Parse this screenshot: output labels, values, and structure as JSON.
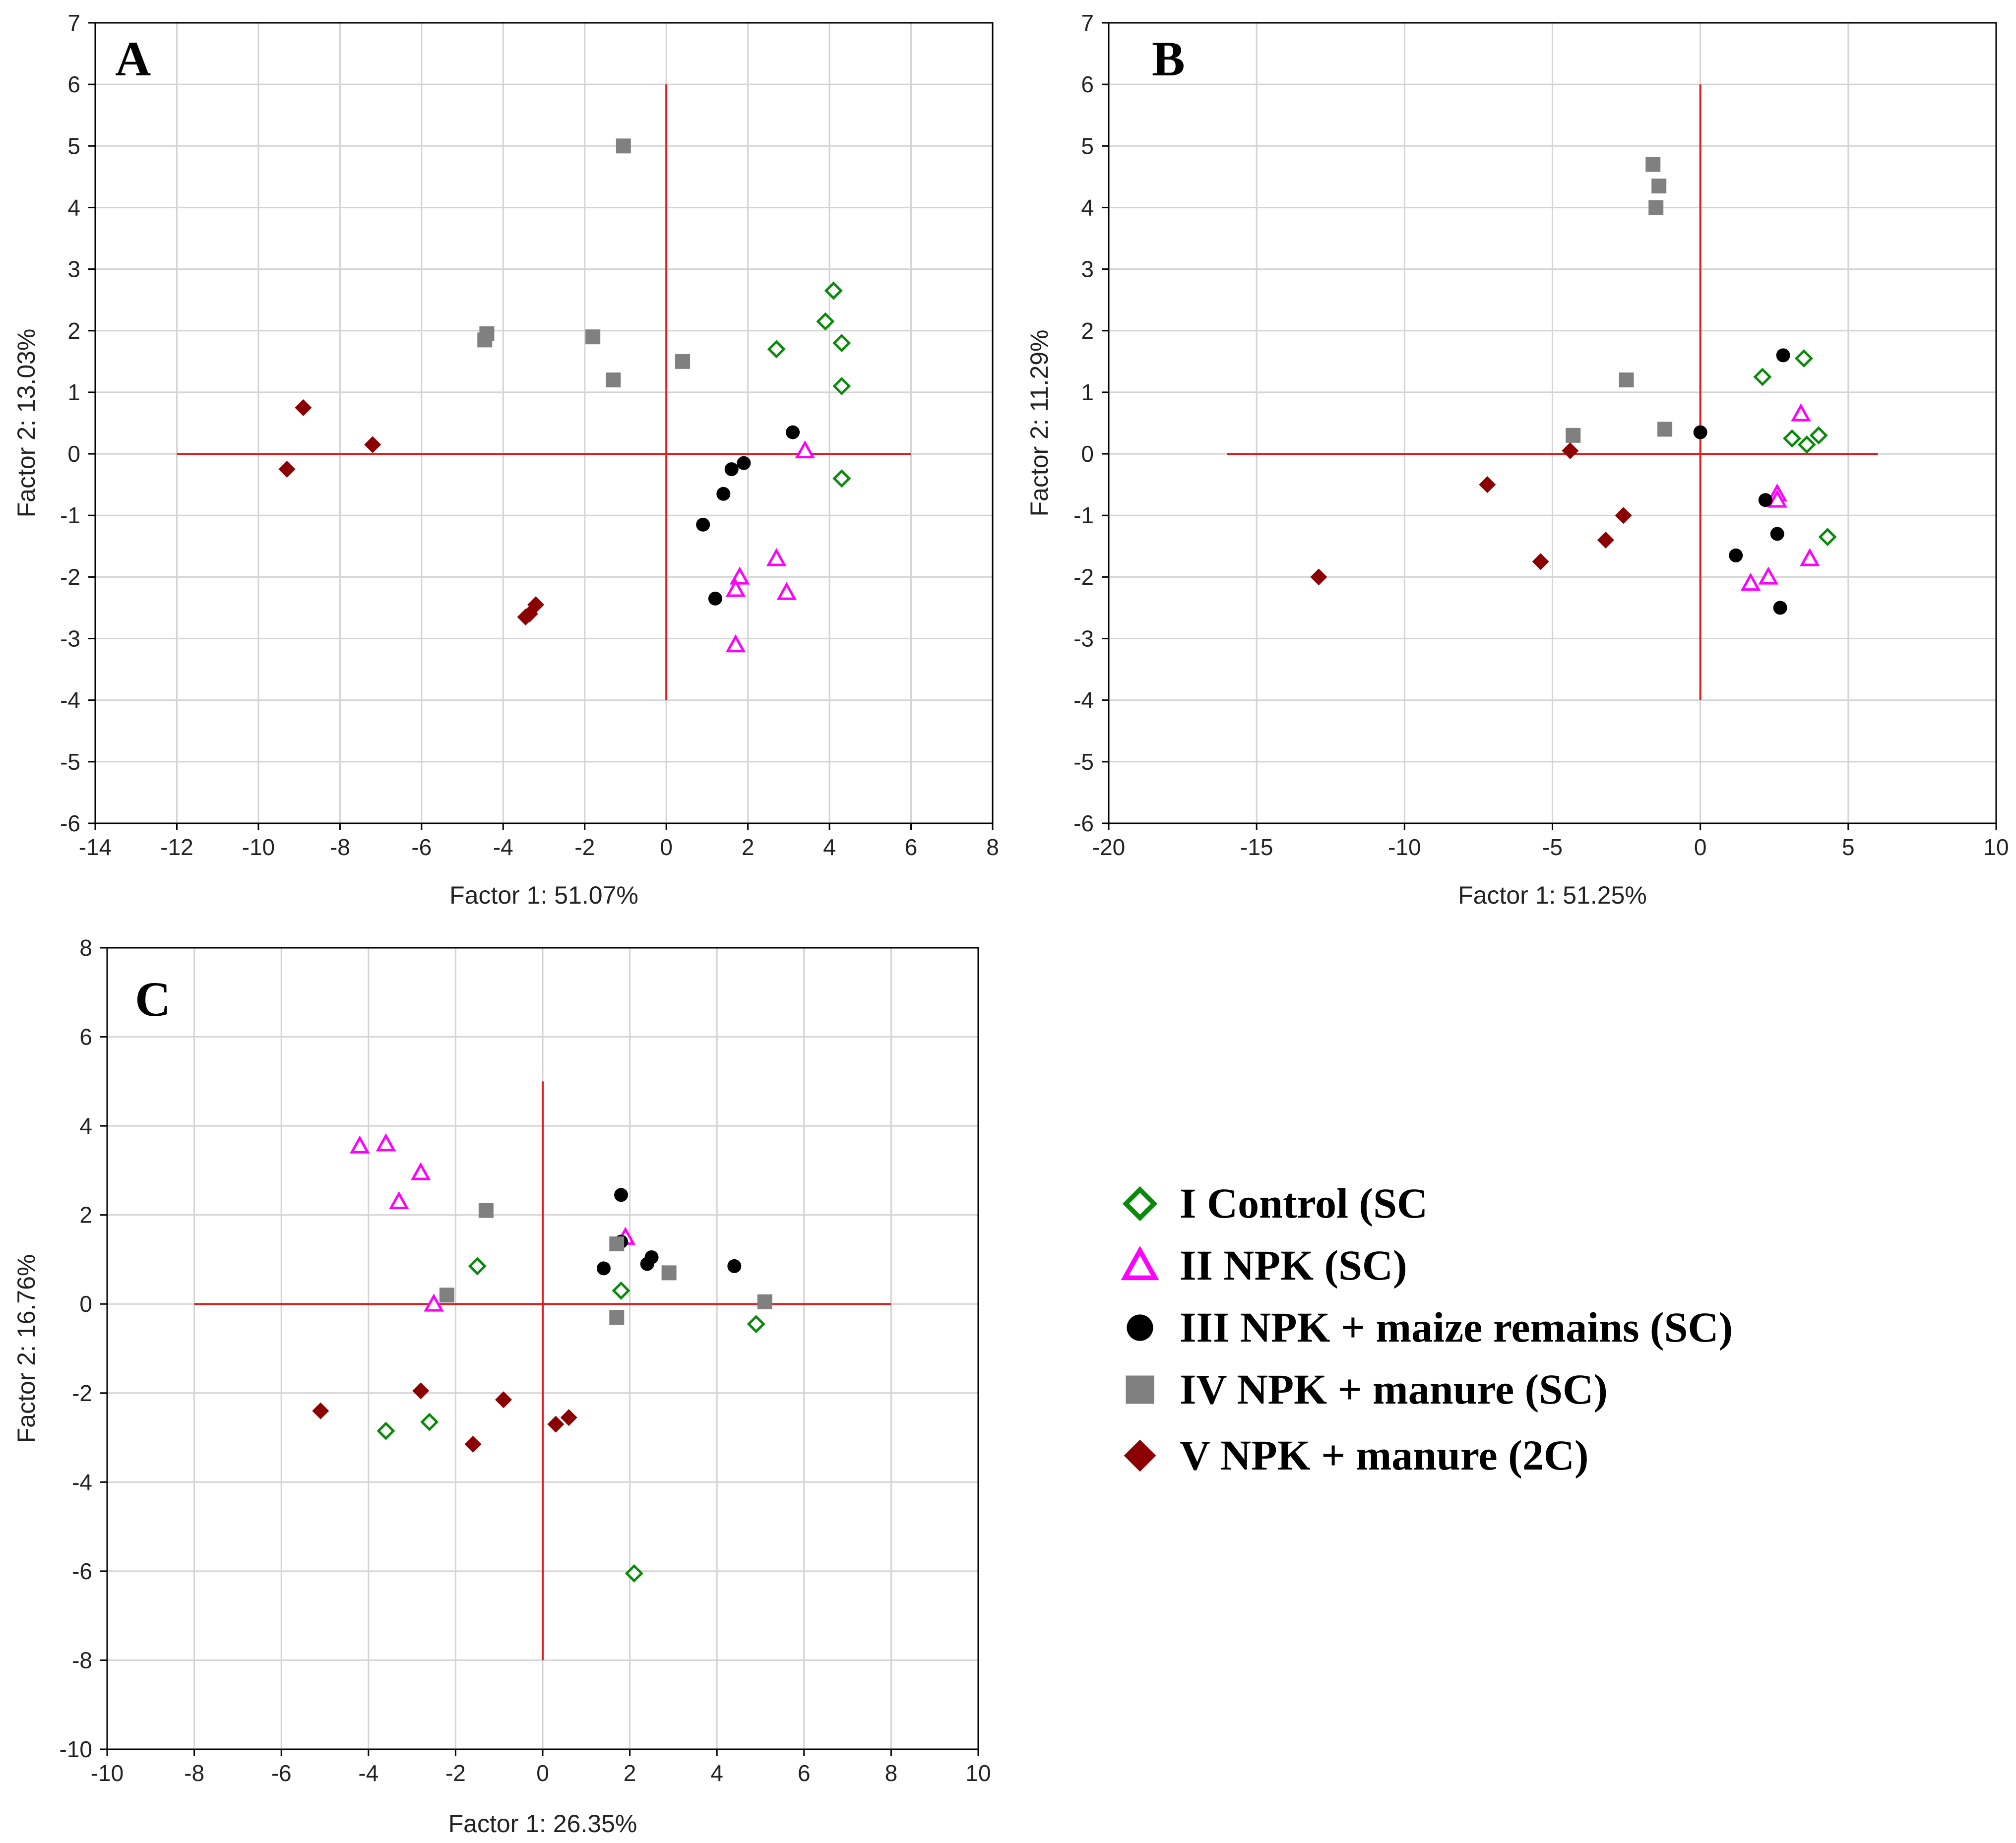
{
  "colors": {
    "control": "#0a8a0a",
    "npk": "#ff00ff",
    "maize": "#000000",
    "manure_sc": "#808080",
    "manure_2c": "#8b0000",
    "reference_line": "#e02020",
    "grid": "#d4d4d4"
  },
  "legend": {
    "items": [
      {
        "key": "control",
        "label": "I Control (SC",
        "marker": "diamond-open"
      },
      {
        "key": "npk",
        "label": "II NPK (SC)",
        "marker": "triangle-open"
      },
      {
        "key": "maize",
        "label": "III NPK + maize remains (SC)",
        "marker": "circle"
      },
      {
        "key": "manure_sc",
        "label": "IV NPK + manure (SC)",
        "marker": "square"
      },
      {
        "key": "manure_2c",
        "label": "V NPK + manure (2C)",
        "marker": "diamond"
      }
    ]
  },
  "chart_data": [
    {
      "panel": "A",
      "type": "scatter",
      "xlabel": "Factor 1: 51.07%",
      "ylabel": "Factor 2: 13.03%",
      "xlim": [
        -14,
        8
      ],
      "ylim": [
        -6,
        7
      ],
      "xticks": [
        -14,
        -12,
        -10,
        -8,
        -6,
        -4,
        -2,
        0,
        2,
        4,
        6,
        8
      ],
      "yticks": [
        -6,
        -5,
        -4,
        -3,
        -2,
        -1,
        0,
        1,
        2,
        3,
        4,
        5,
        6,
        7
      ],
      "reference_lines": {
        "horizontal": {
          "y": 0,
          "x_from": -12,
          "x_to": 6
        },
        "vertical": {
          "x": 0,
          "y_from": -4,
          "y_to": 6
        }
      },
      "series": [
        {
          "key": "control",
          "points": [
            [
              4.1,
              2.65
            ],
            [
              3.9,
              2.15
            ],
            [
              4.3,
              1.8
            ],
            [
              2.7,
              1.7
            ],
            [
              4.3,
              1.1
            ],
            [
              4.3,
              -0.4
            ]
          ]
        },
        {
          "key": "npk",
          "points": [
            [
              3.4,
              0.05
            ],
            [
              2.7,
              -1.7
            ],
            [
              1.8,
              -2.0
            ],
            [
              1.7,
              -2.2
            ],
            [
              2.95,
              -2.25
            ],
            [
              1.7,
              -3.1
            ]
          ]
        },
        {
          "key": "maize",
          "points": [
            [
              3.1,
              0.35
            ],
            [
              1.9,
              -0.15
            ],
            [
              1.6,
              -0.25
            ],
            [
              1.4,
              -0.65
            ],
            [
              0.9,
              -1.15
            ],
            [
              1.2,
              -2.35
            ]
          ]
        },
        {
          "key": "manure_sc",
          "points": [
            [
              -1.05,
              5.0
            ],
            [
              -4.4,
              1.95
            ],
            [
              -4.45,
              1.85
            ],
            [
              -1.8,
              1.9
            ],
            [
              0.4,
              1.5
            ],
            [
              -1.3,
              1.2
            ]
          ]
        },
        {
          "key": "manure_2c",
          "points": [
            [
              -8.9,
              0.75
            ],
            [
              -7.2,
              0.15
            ],
            [
              -9.3,
              -0.25
            ],
            [
              -3.2,
              -2.45
            ],
            [
              -3.35,
              -2.6
            ],
            [
              -3.45,
              -2.65
            ]
          ]
        }
      ]
    },
    {
      "panel": "B",
      "type": "scatter",
      "xlabel": "Factor 1: 51.25%",
      "ylabel": "Factor 2: 11.29%",
      "xlim": [
        -20,
        10
      ],
      "ylim": [
        -6,
        7
      ],
      "xticks": [
        -20,
        -15,
        -10,
        -5,
        0,
        5,
        10
      ],
      "yticks": [
        -6,
        -5,
        -4,
        -3,
        -2,
        -1,
        0,
        1,
        2,
        3,
        4,
        5,
        6,
        7
      ],
      "reference_lines": {
        "horizontal": {
          "y": 0,
          "x_from": -16,
          "x_to": 6
        },
        "vertical": {
          "x": 0,
          "y_from": -4,
          "y_to": 6
        }
      },
      "series": [
        {
          "key": "control",
          "points": [
            [
              3.5,
              1.55
            ],
            [
              2.1,
              1.25
            ],
            [
              3.1,
              0.25
            ],
            [
              4.0,
              0.3
            ],
            [
              3.6,
              0.15
            ],
            [
              4.3,
              -1.35
            ]
          ]
        },
        {
          "key": "npk",
          "points": [
            [
              3.4,
              0.65
            ],
            [
              2.6,
              -0.65
            ],
            [
              2.6,
              -0.75
            ],
            [
              3.7,
              -1.7
            ],
            [
              2.3,
              -2.0
            ],
            [
              1.7,
              -2.1
            ]
          ]
        },
        {
          "key": "maize",
          "points": [
            [
              2.8,
              1.6
            ],
            [
              0.0,
              0.35
            ],
            [
              2.2,
              -0.75
            ],
            [
              2.6,
              -1.3
            ],
            [
              1.2,
              -1.65
            ],
            [
              2.7,
              -2.5
            ]
          ]
        },
        {
          "key": "manure_sc",
          "points": [
            [
              -1.6,
              4.7
            ],
            [
              -1.4,
              4.35
            ],
            [
              -1.5,
              4.0
            ],
            [
              -2.5,
              1.2
            ],
            [
              -1.2,
              0.4
            ],
            [
              -4.3,
              0.3
            ]
          ]
        },
        {
          "key": "manure_2c",
          "points": [
            [
              -4.4,
              0.05
            ],
            [
              -7.2,
              -0.5
            ],
            [
              -2.6,
              -1.0
            ],
            [
              -3.2,
              -1.4
            ],
            [
              -5.4,
              -1.75
            ],
            [
              -12.9,
              -2.0
            ]
          ]
        }
      ]
    },
    {
      "panel": "C",
      "type": "scatter",
      "xlabel": "Factor 1: 26.35%",
      "ylabel": "Factor 2: 16.76%",
      "xlim": [
        -10,
        10
      ],
      "ylim": [
        -10,
        8
      ],
      "xticks": [
        -10,
        -8,
        -6,
        -4,
        -2,
        0,
        2,
        4,
        6,
        8,
        10
      ],
      "yticks": [
        -10,
        -8,
        -6,
        -4,
        -2,
        0,
        2,
        4,
        6,
        8
      ],
      "reference_lines": {
        "horizontal": {
          "y": 0,
          "x_from": -8,
          "x_to": 8
        },
        "vertical": {
          "x": 0,
          "y_from": -8,
          "y_to": 5
        }
      },
      "series": [
        {
          "key": "control",
          "points": [
            [
              -1.5,
              0.85
            ],
            [
              1.8,
              0.3
            ],
            [
              4.9,
              -0.45
            ],
            [
              -2.6,
              -2.65
            ],
            [
              -3.6,
              -2.85
            ],
            [
              2.1,
              -6.05
            ]
          ]
        },
        {
          "key": "npk",
          "points": [
            [
              -4.2,
              3.55
            ],
            [
              -3.6,
              3.6
            ],
            [
              -2.8,
              2.95
            ],
            [
              -3.3,
              2.3
            ],
            [
              1.9,
              1.5
            ],
            [
              -2.5,
              0.0
            ]
          ]
        },
        {
          "key": "maize",
          "points": [
            [
              1.8,
              2.45
            ],
            [
              1.8,
              1.4
            ],
            [
              1.4,
              0.8
            ],
            [
              2.5,
              1.05
            ],
            [
              2.4,
              0.9
            ],
            [
              4.4,
              0.85
            ]
          ]
        },
        {
          "key": "manure_sc",
          "points": [
            [
              -1.3,
              2.1
            ],
            [
              1.7,
              1.35
            ],
            [
              2.9,
              0.7
            ],
            [
              -2.2,
              0.2
            ],
            [
              5.1,
              0.05
            ],
            [
              1.7,
              -0.3
            ]
          ]
        },
        {
          "key": "manure_2c",
          "points": [
            [
              -2.8,
              -1.95
            ],
            [
              -0.9,
              -2.15
            ],
            [
              -5.1,
              -2.4
            ],
            [
              0.6,
              -2.55
            ],
            [
              0.3,
              -2.7
            ],
            [
              -1.6,
              -3.15
            ]
          ]
        }
      ]
    }
  ]
}
